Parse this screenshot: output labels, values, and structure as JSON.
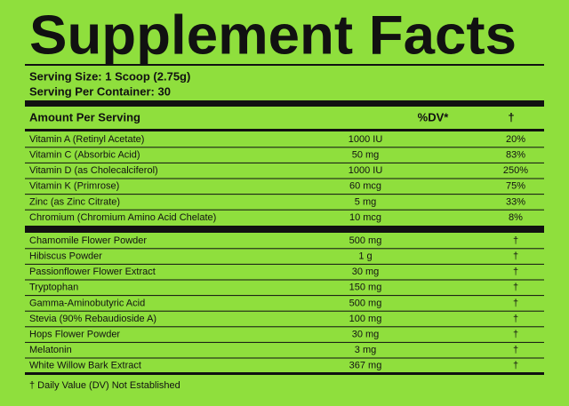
{
  "header": {
    "title": "Supplement Facts"
  },
  "serving": {
    "size": "Serving Size: 1 Scoop (2.75g)",
    "per_container": "Serving Per Container: 30"
  },
  "table": {
    "columns": [
      "Amount Per Serving",
      "%DV*",
      "†"
    ],
    "vitamins": [
      [
        "Vitamin A (Retinyl Acetate)",
        "1000 IU",
        "20%"
      ],
      [
        "Vitamin C (Absorbic Acid)",
        "50 mg",
        "83%"
      ],
      [
        "Vitamin D (as Cholecalciferol)",
        "1000 IU",
        "250%"
      ],
      [
        "Vitamin K (Primrose)",
        "60 mcg",
        "75%"
      ],
      [
        "Zinc (as Zinc Citrate)",
        "5 mg",
        "33%"
      ],
      [
        "Chromium (Chromium Amino Acid Chelate)",
        "10 mcg",
        "8%"
      ]
    ],
    "ingredients": [
      [
        "Chamomile Flower Powder",
        "500 mg",
        "†"
      ],
      [
        "Hibiscus Powder",
        "1 g",
        "†"
      ],
      [
        "Passionflower Flower Extract",
        "30 mg",
        "†"
      ],
      [
        "Tryptophan",
        "150 mg",
        "†"
      ],
      [
        "Gamma-Aminobutyric Acid",
        "500 mg",
        "†"
      ],
      [
        "Stevia (90% Rebaudioside A)",
        "100 mg",
        "†"
      ],
      [
        "Hops Flower Powder",
        "30 mg",
        "†"
      ],
      [
        "Melatonin",
        "3 mg",
        "†"
      ],
      [
        "White Willow Bark Extract",
        "367 mg",
        "†"
      ]
    ],
    "footnote": "† Daily Value (DV) Not Established"
  }
}
